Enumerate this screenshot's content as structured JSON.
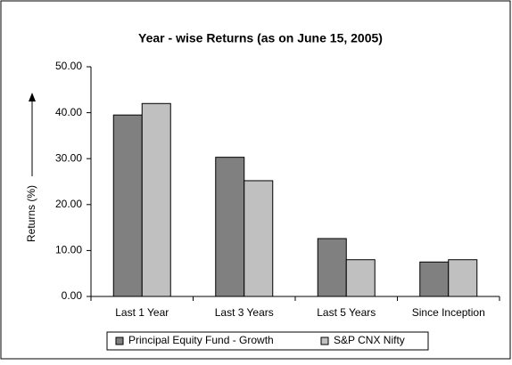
{
  "chart_data": {
    "type": "bar",
    "title": "Year - wise Returns (as on June 15, 2005)",
    "y_label": "Returns (%)",
    "categories": [
      "Last 1 Year",
      "Last 3 Years",
      "Last 5 Years",
      "Since Inception"
    ],
    "series": [
      {
        "name": "Principal Equity Fund - Growth",
        "color": "#808080",
        "values": [
          39.5,
          30.3,
          12.6,
          7.5
        ]
      },
      {
        "name": "S&P CNX Nifty",
        "color": "#c0c0c0",
        "values": [
          42.0,
          25.2,
          8.0,
          8.0
        ]
      }
    ],
    "ylim": [
      0,
      50
    ],
    "yticks": [
      {
        "value": 0,
        "label": "0.00"
      },
      {
        "value": 10,
        "label": "10.00"
      },
      {
        "value": 20,
        "label": "20.00"
      },
      {
        "value": 30,
        "label": "30.00"
      },
      {
        "value": 40,
        "label": "40.00"
      },
      {
        "value": 50,
        "label": "50.00"
      }
    ],
    "legend": "bottom"
  }
}
